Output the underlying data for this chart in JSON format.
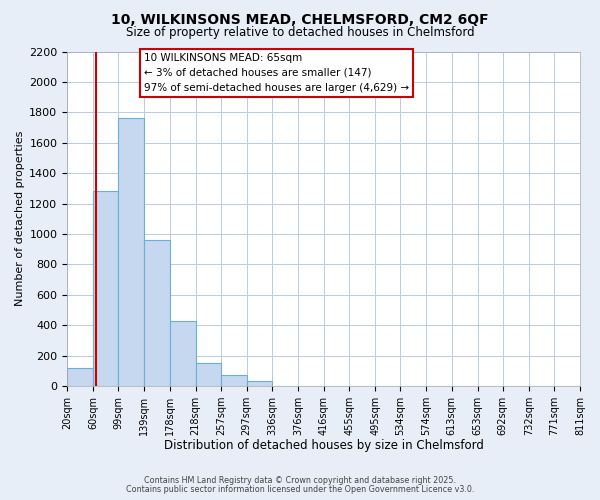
{
  "title_line1": "10, WILKINSONS MEAD, CHELMSFORD, CM2 6QF",
  "title_line2": "Size of property relative to detached houses in Chelmsford",
  "xlabel": "Distribution of detached houses by size in Chelmsford",
  "ylabel": "Number of detached properties",
  "bar_values": [
    120,
    1280,
    1760,
    960,
    430,
    150,
    75,
    35,
    0,
    0,
    0,
    0,
    0,
    0,
    0,
    0,
    0,
    0,
    0,
    0
  ],
  "bin_edges": [
    20,
    60,
    99,
    139,
    178,
    218,
    257,
    297,
    336,
    376,
    416,
    455,
    495,
    534,
    574,
    613,
    653,
    692,
    732,
    771,
    811
  ],
  "tick_labels": [
    "20sqm",
    "60sqm",
    "99sqm",
    "139sqm",
    "178sqm",
    "218sqm",
    "257sqm",
    "297sqm",
    "336sqm",
    "376sqm",
    "416sqm",
    "455sqm",
    "495sqm",
    "534sqm",
    "574sqm",
    "613sqm",
    "653sqm",
    "692sqm",
    "732sqm",
    "771sqm",
    "811sqm"
  ],
  "bar_color": "#c5d8f0",
  "bar_edgecolor": "#6baed6",
  "vline_x": 65,
  "vline_color": "#cc0000",
  "ylim": [
    0,
    2200
  ],
  "yticks": [
    0,
    200,
    400,
    600,
    800,
    1000,
    1200,
    1400,
    1600,
    1800,
    2000,
    2200
  ],
  "annotation_title": "10 WILKINSONS MEAD: 65sqm",
  "annotation_line2": "← 3% of detached houses are smaller (147)",
  "annotation_line3": "97% of semi-detached houses are larger (4,629) →",
  "footer1": "Contains HM Land Registry data © Crown copyright and database right 2025.",
  "footer2": "Contains public sector information licensed under the Open Government Licence v3.0.",
  "background_color": "#e8eef8",
  "plot_background": "#ffffff",
  "grid_color": "#b8cce4"
}
